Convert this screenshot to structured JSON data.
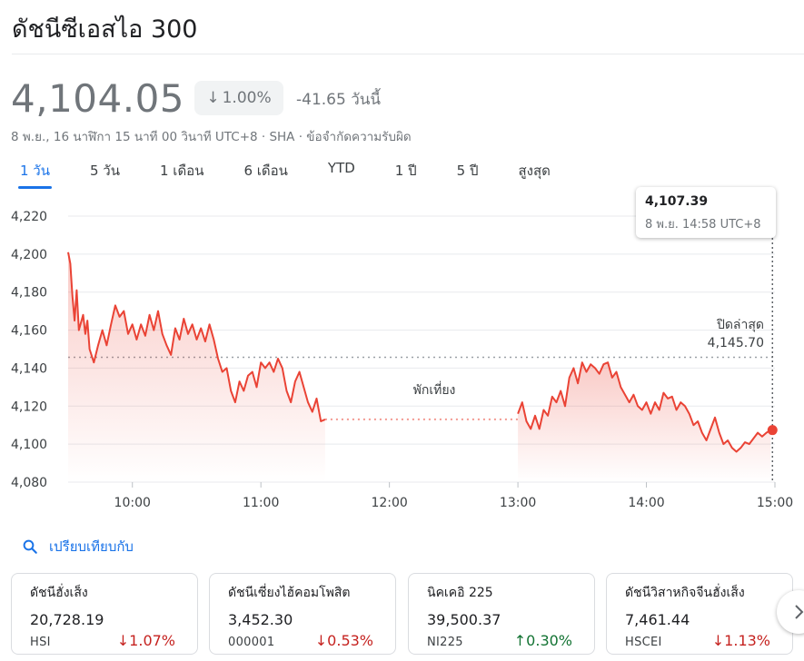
{
  "page": {
    "title": "ดัชนีซีเอสไอ 300",
    "price": "4,104.05",
    "change_pct": "1.00%",
    "change_abs": "-41.65 วันนี้",
    "meta": "8 พ.ย., 16 นาฬิกา 15 นาที 00 วินาที UTC+8 · SHA · ข้อจำกัดความรับผิด"
  },
  "tabs": [
    "1 วัน",
    "5 วัน",
    "1 เดือน",
    "6 เดือน",
    "YTD",
    "1 ปี",
    "5 ปี",
    "สูงสุด"
  ],
  "active_tab": 0,
  "tooltip": {
    "value": "4,107.39",
    "date": "8 พ.ย. 14:58 UTC+8"
  },
  "prev_close": {
    "label": "ปิดล่าสุด",
    "value": "4,145.70"
  },
  "lunch_label": "พักเที่ยง",
  "compare": {
    "label": "เปรียบเทียบกับ",
    "icon": "search-icon"
  },
  "colors": {
    "accent": "#1a73e8",
    "line": "#ea4335",
    "down": "#c5221f",
    "up": "#137333"
  },
  "chart_data": {
    "type": "line",
    "y_ticks": [
      "4,220",
      "4,200",
      "4,180",
      "4,160",
      "4,140",
      "4,120",
      "4,100",
      "4,080"
    ],
    "ylim": [
      4080,
      4220
    ],
    "x_ticks": [
      "10:00",
      "11:00",
      "12:00",
      "13:00",
      "14:00",
      "15:00"
    ],
    "reference_line": 4145.7,
    "lunch_level": 4113,
    "series": [
      {
        "points": [
          [
            "09:30",
            4201
          ],
          [
            "09:31",
            4195
          ],
          [
            "09:32",
            4178
          ],
          [
            "09:33",
            4165
          ],
          [
            "09:34",
            4181
          ],
          [
            "09:35",
            4160
          ],
          [
            "09:37",
            4168
          ],
          [
            "09:38",
            4158
          ],
          [
            "09:39",
            4165
          ],
          [
            "09:40",
            4150
          ],
          [
            "09:42",
            4143
          ],
          [
            "09:44",
            4152
          ],
          [
            "09:46",
            4160
          ],
          [
            "09:48",
            4152
          ],
          [
            "09:50",
            4163
          ],
          [
            "09:52",
            4173
          ],
          [
            "09:54",
            4167
          ],
          [
            "09:56",
            4170
          ],
          [
            "09:58",
            4158
          ],
          [
            "10:00",
            4163
          ],
          [
            "10:02",
            4155
          ],
          [
            "10:04",
            4163
          ],
          [
            "10:06",
            4157
          ],
          [
            "10:08",
            4168
          ],
          [
            "10:10",
            4160
          ],
          [
            "10:12",
            4170
          ],
          [
            "10:14",
            4158
          ],
          [
            "10:16",
            4152
          ],
          [
            "10:18",
            4147
          ],
          [
            "10:20",
            4161
          ],
          [
            "10:22",
            4155
          ],
          [
            "10:24",
            4166
          ],
          [
            "10:26",
            4158
          ],
          [
            "10:28",
            4163
          ],
          [
            "10:30",
            4155
          ],
          [
            "10:32",
            4161
          ],
          [
            "10:34",
            4154
          ],
          [
            "10:36",
            4163
          ],
          [
            "10:38",
            4155
          ],
          [
            "10:40",
            4145
          ],
          [
            "10:42",
            4138
          ],
          [
            "10:44",
            4140
          ],
          [
            "10:46",
            4128
          ],
          [
            "10:48",
            4122
          ],
          [
            "10:50",
            4133
          ],
          [
            "10:52",
            4128
          ],
          [
            "10:54",
            4136
          ],
          [
            "10:56",
            4138
          ],
          [
            "10:58",
            4130
          ],
          [
            "11:00",
            4143
          ],
          [
            "11:02",
            4140
          ],
          [
            "11:04",
            4143
          ],
          [
            "11:06",
            4138
          ],
          [
            "11:08",
            4145
          ],
          [
            "11:10",
            4140
          ],
          [
            "11:12",
            4128
          ],
          [
            "11:14",
            4122
          ],
          [
            "11:16",
            4133
          ],
          [
            "11:18",
            4138
          ],
          [
            "11:20",
            4130
          ],
          [
            "11:22",
            4122
          ],
          [
            "11:24",
            4117
          ],
          [
            "11:26",
            4124
          ],
          [
            "11:28",
            4112
          ],
          [
            "11:30",
            4113
          ],
          [
            "13:00",
            4116
          ],
          [
            "13:02",
            4122
          ],
          [
            "13:04",
            4112
          ],
          [
            "13:06",
            4108
          ],
          [
            "13:08",
            4115
          ],
          [
            "13:10",
            4108
          ],
          [
            "13:12",
            4118
          ],
          [
            "13:14",
            4115
          ],
          [
            "13:16",
            4125
          ],
          [
            "13:18",
            4122
          ],
          [
            "13:20",
            4128
          ],
          [
            "13:22",
            4120
          ],
          [
            "13:24",
            4135
          ],
          [
            "13:26",
            4140
          ],
          [
            "13:28",
            4132
          ],
          [
            "13:30",
            4143
          ],
          [
            "13:32",
            4138
          ],
          [
            "13:34",
            4142
          ],
          [
            "13:36",
            4140
          ],
          [
            "13:38",
            4137
          ],
          [
            "13:40",
            4142
          ],
          [
            "13:42",
            4143
          ],
          [
            "13:44",
            4135
          ],
          [
            "13:46",
            4138
          ],
          [
            "13:48",
            4130
          ],
          [
            "13:50",
            4126
          ],
          [
            "13:52",
            4122
          ],
          [
            "13:54",
            4126
          ],
          [
            "13:56",
            4120
          ],
          [
            "13:58",
            4118
          ],
          [
            "14:00",
            4122
          ],
          [
            "14:02",
            4116
          ],
          [
            "14:04",
            4122
          ],
          [
            "14:06",
            4118
          ],
          [
            "14:08",
            4127
          ],
          [
            "14:10",
            4124
          ],
          [
            "14:12",
            4125
          ],
          [
            "14:14",
            4118
          ],
          [
            "14:16",
            4122
          ],
          [
            "14:18",
            4120
          ],
          [
            "14:20",
            4116
          ],
          [
            "14:22",
            4110
          ],
          [
            "14:24",
            4112
          ],
          [
            "14:26",
            4106
          ],
          [
            "14:28",
            4102
          ],
          [
            "14:30",
            4108
          ],
          [
            "14:32",
            4114
          ],
          [
            "14:34",
            4106
          ],
          [
            "14:36",
            4100
          ],
          [
            "14:38",
            4102
          ],
          [
            "14:40",
            4098
          ],
          [
            "14:42",
            4096
          ],
          [
            "14:44",
            4098
          ],
          [
            "14:46",
            4101
          ],
          [
            "14:48",
            4100
          ],
          [
            "14:50",
            4103
          ],
          [
            "14:52",
            4106
          ],
          [
            "14:54",
            4104
          ],
          [
            "14:56",
            4106
          ],
          [
            "14:58",
            4107.39
          ]
        ]
      }
    ]
  },
  "cards": [
    {
      "name": "ดัชนีฮั่งเส็ง",
      "value": "20,728.19",
      "symbol": "HSI",
      "change": "1.07%",
      "direction": "down"
    },
    {
      "name": "ดัชนีเซี่ยงไฮ้คอมโพสิต",
      "value": "3,452.30",
      "symbol": "000001",
      "change": "0.53%",
      "direction": "down"
    },
    {
      "name": "นิคเคอิ 225",
      "value": "39,500.37",
      "symbol": "NI225",
      "change": "0.30%",
      "direction": "up"
    },
    {
      "name": "ดัชนีวิสาหกิจจีนฮั่งเส็ง",
      "value": "7,461.44",
      "symbol": "HSCEI",
      "change": "1.13%",
      "direction": "down"
    }
  ]
}
